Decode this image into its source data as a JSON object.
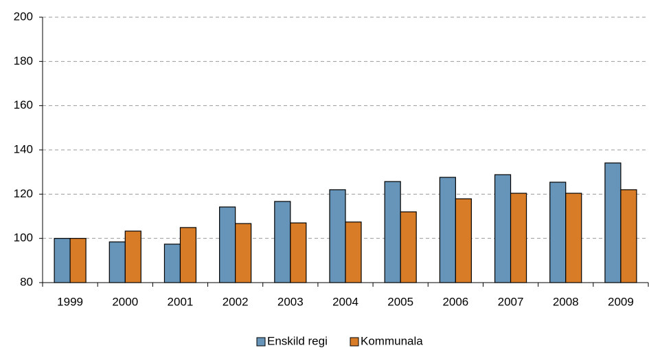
{
  "chart_data": {
    "type": "bar",
    "categories": [
      "1999",
      "2000",
      "2001",
      "2002",
      "2003",
      "2004",
      "2005",
      "2006",
      "2007",
      "2008",
      "2009"
    ],
    "series": [
      {
        "name": "Enskild regi",
        "color": "#6795ba",
        "values": [
          100,
          98.4,
          97.4,
          114.2,
          116.7,
          122.0,
          125.7,
          127.6,
          128.8,
          125.4,
          134.1
        ]
      },
      {
        "name": "Kommunala",
        "color": "#d97c27",
        "values": [
          100,
          103.3,
          104.9,
          106.7,
          107.0,
          107.4,
          112.0,
          117.9,
          120.4,
          120.4,
          122.0
        ]
      }
    ],
    "ylim": [
      80,
      200
    ],
    "yticks": [
      80,
      100,
      120,
      140,
      160,
      180,
      200
    ],
    "grid": true,
    "legend": "bottom"
  }
}
